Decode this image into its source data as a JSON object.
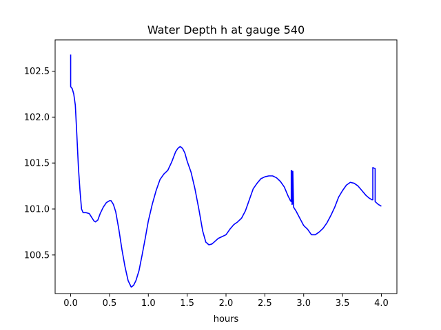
{
  "chart_data": {
    "type": "line",
    "title": "Water Depth h at gauge 540",
    "xlabel": "hours",
    "ylabel": "",
    "xlim": [
      -0.2,
      4.2
    ],
    "ylim": [
      100.08,
      102.84
    ],
    "xticks": [
      0.0,
      0.5,
      1.0,
      1.5,
      2.0,
      2.5,
      3.0,
      3.5,
      4.0
    ],
    "xtick_labels": [
      "0.0",
      "0.5",
      "1.0",
      "1.5",
      "2.0",
      "2.5",
      "3.0",
      "3.5",
      "4.0"
    ],
    "yticks": [
      100.5,
      101.0,
      101.5,
      102.0,
      102.5
    ],
    "ytick_labels": [
      "100.5",
      "101.0",
      "101.5",
      "102.0",
      "102.5"
    ],
    "grid": false,
    "legend": "none",
    "series": [
      {
        "color": "#0000ff",
        "x": [
          0.0,
          0.0,
          0.0,
          0.02,
          0.04,
          0.06,
          0.08,
          0.1,
          0.12,
          0.14,
          0.16,
          0.2,
          0.24,
          0.27,
          0.3,
          0.32,
          0.35,
          0.38,
          0.42,
          0.46,
          0.5,
          0.52,
          0.55,
          0.58,
          0.62,
          0.66,
          0.7,
          0.74,
          0.78,
          0.81,
          0.84,
          0.88,
          0.92,
          0.96,
          1.0,
          1.05,
          1.1,
          1.15,
          1.2,
          1.25,
          1.3,
          1.35,
          1.38,
          1.41,
          1.44,
          1.47,
          1.5,
          1.55,
          1.6,
          1.65,
          1.7,
          1.74,
          1.78,
          1.82,
          1.86,
          1.9,
          1.95,
          2.0,
          2.05,
          2.1,
          2.15,
          2.2,
          2.25,
          2.3,
          2.35,
          2.4,
          2.45,
          2.5,
          2.55,
          2.6,
          2.65,
          2.7,
          2.75,
          2.8,
          2.83,
          2.84,
          2.84,
          2.85,
          2.85,
          2.86,
          2.86,
          2.87,
          2.9,
          2.95,
          3.0,
          3.05,
          3.1,
          3.15,
          3.2,
          3.25,
          3.3,
          3.35,
          3.4,
          3.45,
          3.5,
          3.55,
          3.6,
          3.65,
          3.7,
          3.75,
          3.8,
          3.84,
          3.88,
          3.89,
          3.89,
          3.92,
          3.92,
          3.96,
          4.0
        ],
        "y": [
          102.68,
          102.33,
          102.33,
          102.31,
          102.25,
          102.13,
          101.8,
          101.45,
          101.2,
          101.0,
          100.96,
          100.96,
          100.95,
          100.91,
          100.87,
          100.86,
          100.88,
          100.95,
          101.02,
          101.07,
          101.09,
          101.09,
          101.05,
          100.97,
          100.78,
          100.56,
          100.37,
          100.22,
          100.15,
          100.17,
          100.22,
          100.33,
          100.5,
          100.68,
          100.87,
          101.05,
          101.2,
          101.32,
          101.38,
          101.42,
          101.51,
          101.62,
          101.66,
          101.68,
          101.66,
          101.61,
          101.52,
          101.4,
          101.22,
          101.0,
          100.76,
          100.64,
          100.61,
          100.62,
          100.65,
          100.68,
          100.7,
          100.72,
          100.78,
          100.83,
          100.86,
          100.9,
          100.98,
          101.1,
          101.22,
          101.28,
          101.33,
          101.35,
          101.36,
          101.36,
          101.34,
          101.3,
          101.24,
          101.14,
          101.09,
          101.08,
          101.42,
          101.41,
          101.05,
          101.06,
          101.41,
          101.02,
          100.98,
          100.9,
          100.82,
          100.78,
          100.72,
          100.72,
          100.75,
          100.79,
          100.85,
          100.93,
          101.02,
          101.13,
          101.2,
          101.26,
          101.29,
          101.28,
          101.25,
          101.2,
          101.15,
          101.12,
          101.1,
          101.1,
          101.45,
          101.44,
          101.08,
          101.05,
          101.03
        ]
      }
    ]
  }
}
